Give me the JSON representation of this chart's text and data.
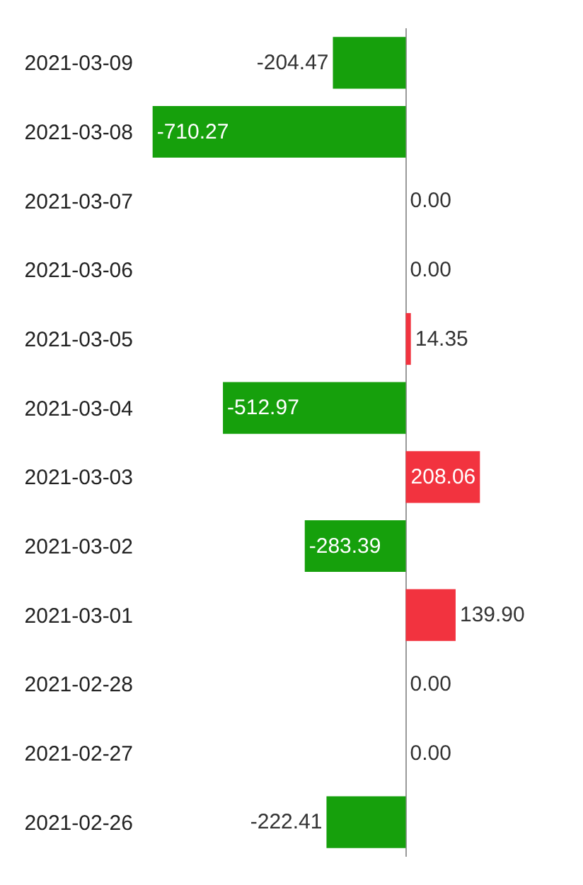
{
  "chart_data": {
    "type": "bar",
    "orientation": "horizontal",
    "categories": [
      "2021-03-09",
      "2021-03-08",
      "2021-03-07",
      "2021-03-06",
      "2021-03-05",
      "2021-03-04",
      "2021-03-03",
      "2021-03-02",
      "2021-03-01",
      "2021-02-28",
      "2021-02-27",
      "2021-02-26"
    ],
    "values": [
      -204.47,
      -710.27,
      0,
      0,
      14.35,
      -512.97,
      208.06,
      -283.39,
      139.9,
      0,
      0,
      -222.41
    ],
    "colors": [
      "#16a00c",
      "#16a00c",
      "#a9acb6",
      "#a9acb6",
      "#f2333f",
      "#16a00c",
      "#f2333f",
      "#16a00c",
      "#f2333f",
      "#a9acb6",
      "#a9acb6",
      "#16a00c"
    ],
    "value_labels": [
      "-204.47",
      "-710.27",
      "0.00",
      "0.00",
      "14.35",
      "-512.97",
      "208.06",
      "-283.39",
      "139.90",
      "0.00",
      "0.00",
      "-222.41"
    ]
  }
}
